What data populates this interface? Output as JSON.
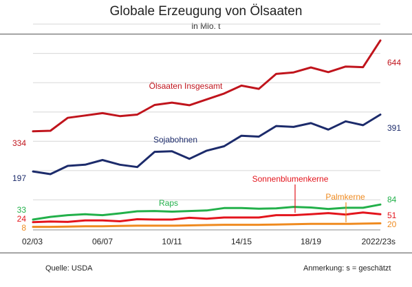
{
  "chart_data": {
    "type": "line",
    "title": "Globale Erzeugung von Ölsaaten",
    "subtitle": "in Mio. t",
    "x": [
      "02/03",
      "03/04",
      "04/05",
      "05/06",
      "06/07",
      "07/08",
      "08/09",
      "09/10",
      "10/11",
      "11/12",
      "12/13",
      "13/14",
      "14/15",
      "15/16",
      "16/17",
      "17/18",
      "18/19",
      "19/20",
      "20/21",
      "21/22",
      "2022/23s"
    ],
    "x_tick_labels": [
      "02/03",
      "06/07",
      "10/11",
      "14/15",
      "18/19",
      "2022/23s"
    ],
    "ylim": [
      0,
      700
    ],
    "grid": true,
    "series": [
      {
        "name": "Ölsaaten Insgesamt",
        "color": "#c0141c",
        "start_label": "334",
        "end_label": "644",
        "values": [
          334,
          336,
          380,
          388,
          396,
          386,
          391,
          424,
          432,
          423,
          443,
          463,
          490,
          479,
          530,
          535,
          552,
          536,
          555,
          553,
          644
        ]
      },
      {
        "name": "Sojabohnen",
        "color": "#1c2b6b",
        "start_label": "197",
        "end_label": "391",
        "values": [
          197,
          188,
          216,
          220,
          236,
          220,
          212,
          264,
          266,
          240,
          268,
          283,
          319,
          316,
          352,
          349,
          362,
          340,
          368,
          355,
          391
        ]
      },
      {
        "name": "Raps",
        "color": "#22b04a",
        "start_label": "33",
        "end_label": "84",
        "values": [
          33,
          42,
          48,
          51,
          48,
          54,
          61,
          62,
          60,
          62,
          64,
          72,
          72,
          70,
          71,
          76,
          74,
          69,
          73,
          73,
          84
        ]
      },
      {
        "name": "Sonnenblumenkerne",
        "color": "#e3141c",
        "start_label": "24",
        "end_label": "51",
        "values": [
          24,
          26,
          25,
          30,
          30,
          27,
          34,
          33,
          33,
          39,
          36,
          40,
          40,
          40,
          48,
          48,
          51,
          55,
          50,
          57,
          51
        ]
      },
      {
        "name": "Palmkerne",
        "color": "#ef8a1f",
        "start_label": "8",
        "end_label": "20",
        "values": [
          8,
          8,
          9,
          10,
          10,
          11,
          12,
          12,
          12,
          13,
          14,
          15,
          15,
          15,
          16,
          17,
          18,
          18,
          18,
          19,
          20
        ]
      }
    ]
  },
  "footer": {
    "source": "Quelle: USDA",
    "note": "Anmerkung: s = geschätzt"
  }
}
